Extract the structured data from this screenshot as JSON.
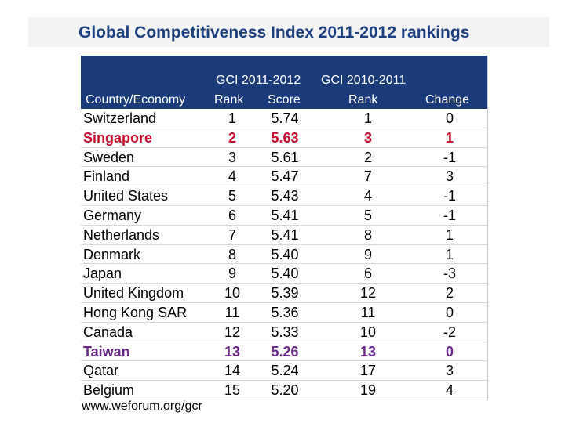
{
  "chart_data": {
    "type": "table",
    "title": "Global Competitiveness Index 2011-2012 rankings",
    "header": {
      "gci_2011_group": "GCI 2011-2012",
      "gci_2010_group": "GCI 2010-2011",
      "country": "Country/Economy",
      "rank": "Rank",
      "score": "Score",
      "prev_rank": "Rank",
      "change": "Change"
    },
    "rows": [
      {
        "country": "Switzerland",
        "rank": "1",
        "score": "5.74",
        "prev_rank": "1",
        "change": "0",
        "highlight": ""
      },
      {
        "country": "Singapore",
        "rank": "2",
        "score": "5.63",
        "prev_rank": "3",
        "change": "1",
        "highlight": "red"
      },
      {
        "country": "Sweden",
        "rank": "3",
        "score": "5.61",
        "prev_rank": "2",
        "change": "-1",
        "highlight": ""
      },
      {
        "country": "Finland",
        "rank": "4",
        "score": "5.47",
        "prev_rank": "7",
        "change": "3",
        "highlight": ""
      },
      {
        "country": "United States",
        "rank": "5",
        "score": "5.43",
        "prev_rank": "4",
        "change": "-1",
        "highlight": ""
      },
      {
        "country": "Germany",
        "rank": "6",
        "score": "5.41",
        "prev_rank": "5",
        "change": "-1",
        "highlight": ""
      },
      {
        "country": "Netherlands",
        "rank": "7",
        "score": "5.41",
        "prev_rank": "8",
        "change": "1",
        "highlight": ""
      },
      {
        "country": "Denmark",
        "rank": "8",
        "score": "5.40",
        "prev_rank": "9",
        "change": "1",
        "highlight": ""
      },
      {
        "country": "Japan",
        "rank": "9",
        "score": "5.40",
        "prev_rank": "6",
        "change": "-3",
        "highlight": ""
      },
      {
        "country": "United Kingdom",
        "rank": "10",
        "score": "5.39",
        "prev_rank": "12",
        "change": "2",
        "highlight": ""
      },
      {
        "country": "Hong Kong SAR",
        "rank": "11",
        "score": "5.36",
        "prev_rank": "11",
        "change": "0",
        "highlight": ""
      },
      {
        "country": "Canada",
        "rank": "12",
        "score": "5.33",
        "prev_rank": "10",
        "change": "-2",
        "highlight": ""
      },
      {
        "country": "Taiwan",
        "rank": "13",
        "score": "5.26",
        "prev_rank": "13",
        "change": "0",
        "highlight": "purple"
      },
      {
        "country": "Qatar",
        "rank": "14",
        "score": "5.24",
        "prev_rank": "17",
        "change": "3",
        "highlight": ""
      },
      {
        "country": "Belgium",
        "rank": "15",
        "score": "5.20",
        "prev_rank": "19",
        "change": "4",
        "highlight": ""
      }
    ],
    "source": "www.weforum.org/gcr"
  },
  "colors": {
    "header_bg": "#1b3a7a",
    "title": "#1c3f80",
    "highlight_red": "#c8102e",
    "highlight_purple": "#6a2a8a"
  }
}
